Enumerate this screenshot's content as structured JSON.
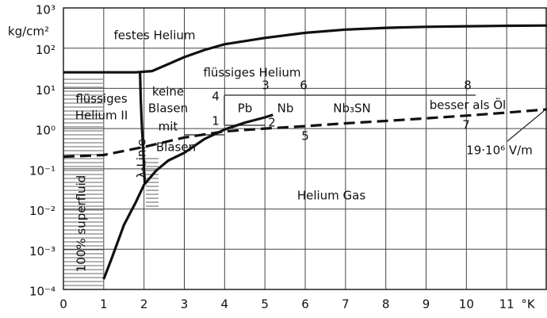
{
  "chart_data": {
    "type": "line",
    "y_label": "kg/cm²",
    "x_label": "°K",
    "xlim": [
      0,
      12
    ],
    "xticks": [
      0,
      1,
      2,
      3,
      4,
      5,
      6,
      7,
      8,
      9,
      10,
      11
    ],
    "ylim": [
      0.0001,
      1000
    ],
    "yscale": "log",
    "yticks": [
      {
        "value": 1000,
        "label": "10³"
      },
      {
        "value": 100,
        "label": "10²"
      },
      {
        "value": 10,
        "label": "10¹"
      },
      {
        "value": 1,
        "label": "10⁰"
      },
      {
        "value": 0.1,
        "label": "10⁻¹"
      },
      {
        "value": 0.01,
        "label": "10⁻²"
      },
      {
        "value": 0.001,
        "label": "10⁻³"
      },
      {
        "value": 0.0001,
        "label": "10⁻⁴"
      }
    ],
    "grid": true,
    "series": [
      {
        "color": "#111111",
        "dash": false,
        "x": [
          0,
          1,
          1.8,
          2.2,
          2.6,
          3,
          3.5,
          4,
          5,
          6,
          7,
          8,
          9,
          10,
          11,
          12
        ],
        "values": [
          25,
          25,
          25,
          27,
          40,
          60,
          90,
          125,
          180,
          240,
          290,
          320,
          340,
          350,
          360,
          365
        ]
      },
      {
        "color": "#111111",
        "dash": false,
        "x": [
          1.9,
          1.92,
          1.95,
          1.98,
          2.0,
          2.02
        ],
        "values": [
          25,
          5,
          1,
          0.3,
          0.1,
          0.04
        ]
      },
      {
        "color": "#111111",
        "dash": false,
        "x": [
          1,
          1.2,
          1.5,
          1.8,
          2,
          2.3,
          2.6,
          3,
          3.5,
          4,
          4.5,
          5,
          5.2
        ],
        "values": [
          0.00018,
          0.0006,
          0.004,
          0.015,
          0.04,
          0.09,
          0.16,
          0.25,
          0.55,
          0.95,
          1.4,
          1.9,
          2.2
        ]
      },
      {
        "color": "#111111",
        "dash": true,
        "x": [
          0,
          1,
          2,
          3,
          4,
          5,
          6,
          7,
          8,
          9,
          10,
          11,
          12
        ],
        "values": [
          0.2,
          0.22,
          0.35,
          0.6,
          0.85,
          1.0,
          1.15,
          1.35,
          1.55,
          1.8,
          2.1,
          2.5,
          3.0
        ]
      }
    ],
    "annotations": [
      "festes Helium",
      "flüssiges Helium",
      "flüssiges",
      "Helium II",
      "keine",
      "Blasen",
      "mit",
      "Blasen",
      "λ-Linie",
      "100% superfluid",
      "Helium Gas",
      "Pb",
      "Nb",
      "Nb₃SN",
      "besser als Öl",
      "1",
      "2",
      "3",
      "4",
      "5",
      "6",
      "7",
      "8",
      "19·10⁶ V/m"
    ]
  }
}
